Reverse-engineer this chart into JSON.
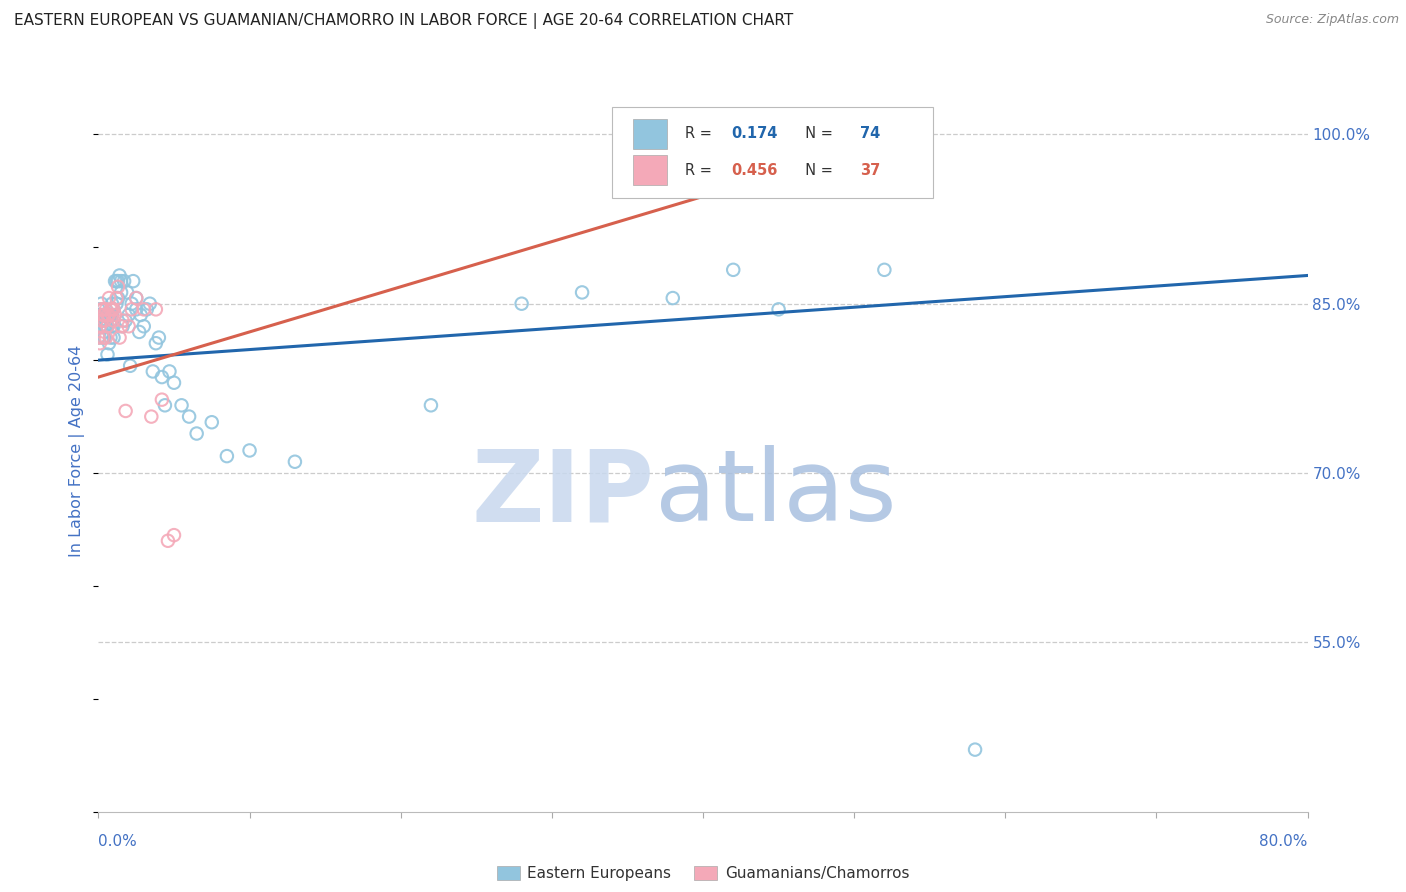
{
  "title": "EASTERN EUROPEAN VS GUAMANIAN/CHAMORRO IN LABOR FORCE | AGE 20-64 CORRELATION CHART",
  "source": "Source: ZipAtlas.com",
  "ylabel": "In Labor Force | Age 20-64",
  "blue_color": "#92c5de",
  "pink_color": "#f4a9b8",
  "blue_line_color": "#2166ac",
  "pink_line_color": "#d6604d",
  "title_color": "#222222",
  "axis_label_color": "#4472c4",
  "grid_color": "#cccccc",
  "blue_scatter_x": [
    0.0,
    0.0,
    0.001,
    0.001,
    0.002,
    0.002,
    0.003,
    0.003,
    0.003,
    0.003,
    0.004,
    0.004,
    0.005,
    0.005,
    0.005,
    0.006,
    0.006,
    0.006,
    0.007,
    0.007,
    0.008,
    0.008,
    0.008,
    0.009,
    0.009,
    0.009,
    0.01,
    0.01,
    0.01,
    0.011,
    0.012,
    0.012,
    0.013,
    0.013,
    0.014,
    0.015,
    0.015,
    0.016,
    0.017,
    0.018,
    0.019,
    0.02,
    0.021,
    0.022,
    0.023,
    0.025,
    0.025,
    0.027,
    0.028,
    0.03,
    0.032,
    0.034,
    0.036,
    0.038,
    0.04,
    0.042,
    0.044,
    0.047,
    0.05,
    0.055,
    0.06,
    0.065,
    0.075,
    0.085,
    0.1,
    0.13,
    0.22,
    0.28,
    0.32,
    0.38,
    0.42,
    0.45,
    0.52,
    0.58
  ],
  "blue_scatter_y": [
    0.82,
    0.845,
    0.84,
    0.83,
    0.835,
    0.85,
    0.82,
    0.84,
    0.835,
    0.845,
    0.83,
    0.82,
    0.836,
    0.84,
    0.83,
    0.805,
    0.83,
    0.84,
    0.815,
    0.84,
    0.82,
    0.84,
    0.835,
    0.84,
    0.85,
    0.83,
    0.82,
    0.83,
    0.845,
    0.87,
    0.85,
    0.87,
    0.855,
    0.87,
    0.875,
    0.86,
    0.87,
    0.83,
    0.87,
    0.835,
    0.86,
    0.84,
    0.795,
    0.85,
    0.87,
    0.845,
    0.855,
    0.825,
    0.84,
    0.83,
    0.845,
    0.85,
    0.79,
    0.815,
    0.82,
    0.785,
    0.76,
    0.79,
    0.78,
    0.76,
    0.75,
    0.735,
    0.745,
    0.715,
    0.72,
    0.71,
    0.76,
    0.85,
    0.86,
    0.855,
    0.88,
    0.845,
    0.88,
    0.455
  ],
  "pink_scatter_x": [
    0.0,
    0.001,
    0.001,
    0.002,
    0.002,
    0.003,
    0.003,
    0.003,
    0.004,
    0.004,
    0.005,
    0.005,
    0.006,
    0.006,
    0.007,
    0.007,
    0.008,
    0.009,
    0.01,
    0.01,
    0.011,
    0.012,
    0.013,
    0.014,
    0.015,
    0.016,
    0.018,
    0.02,
    0.022,
    0.025,
    0.03,
    0.035,
    0.038,
    0.042,
    0.046,
    0.05,
    0.35
  ],
  "pink_scatter_y": [
    0.82,
    0.815,
    0.83,
    0.835,
    0.845,
    0.84,
    0.82,
    0.845,
    0.835,
    0.84,
    0.82,
    0.845,
    0.84,
    0.83,
    0.855,
    0.84,
    0.845,
    0.845,
    0.835,
    0.845,
    0.84,
    0.855,
    0.865,
    0.82,
    0.83,
    0.835,
    0.755,
    0.83,
    0.845,
    0.855,
    0.845,
    0.75,
    0.845,
    0.765,
    0.64,
    0.645,
    1.0
  ],
  "blue_trend_x": [
    0.0,
    0.8
  ],
  "blue_trend_y": [
    0.8,
    0.875
  ],
  "pink_trend_x": [
    0.0,
    0.55
  ],
  "pink_trend_y": [
    0.785,
    1.005
  ],
  "xmin": 0.0,
  "xmax": 0.8,
  "ymin": 0.4,
  "ymax": 1.04,
  "yticks": [
    1.0,
    0.85,
    0.7,
    0.55
  ],
  "ytick_labels": [
    "100.0%",
    "85.0%",
    "70.0%",
    "55.0%"
  ],
  "xtick_bottom_left": "0.0%",
  "xtick_bottom_right": "80.0%"
}
